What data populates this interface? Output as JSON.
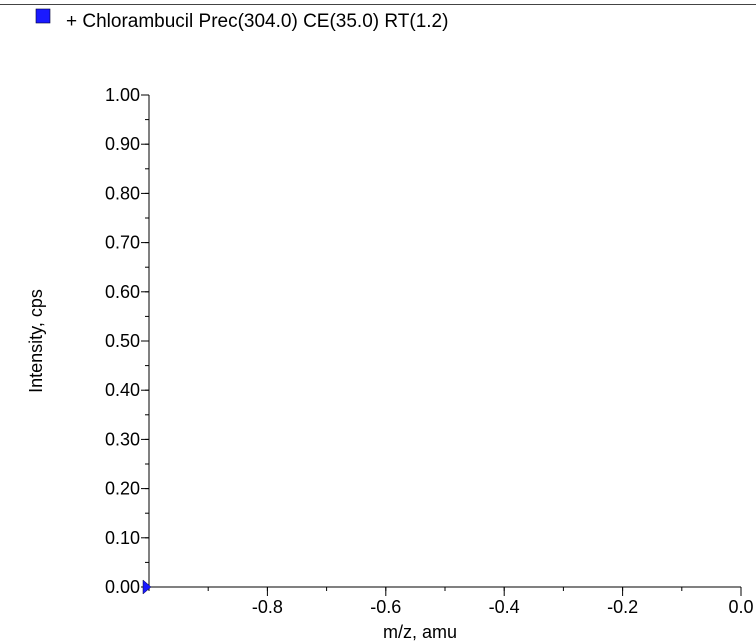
{
  "chart_data": {
    "type": "line",
    "title": "+ Chlorambucil Prec(304.0) CE(35.0) RT(1.2)",
    "legend_color": "#1a1aff",
    "series_color": "#1a1aff",
    "xlabel": "m/z, amu",
    "ylabel": "Intensity, cps",
    "xlim": [
      -1.0,
      0.0
    ],
    "ylim": [
      0.0,
      1.0
    ],
    "x_ticks": [
      -0.8,
      -0.6,
      -0.4,
      -0.2,
      0.0
    ],
    "x_tick_labels": [
      "-0.8",
      "-0.6",
      "-0.4",
      "-0.2",
      "0.0"
    ],
    "y_ticks": [
      0.0,
      0.1,
      0.2,
      0.3,
      0.4,
      0.5,
      0.6,
      0.7,
      0.8,
      0.9,
      1.0
    ],
    "y_tick_labels": [
      "0.00",
      "0.10",
      "0.20",
      "0.30",
      "0.40",
      "0.50",
      "0.60",
      "0.70",
      "0.80",
      "0.90",
      "1.00"
    ],
    "x_minor_step": 0.1,
    "y_minor_step": 0.05,
    "grid": false,
    "series": [
      {
        "values": []
      }
    ],
    "marker": {
      "shape": "triangle-right",
      "x": -1.0,
      "y": 0.0
    }
  }
}
